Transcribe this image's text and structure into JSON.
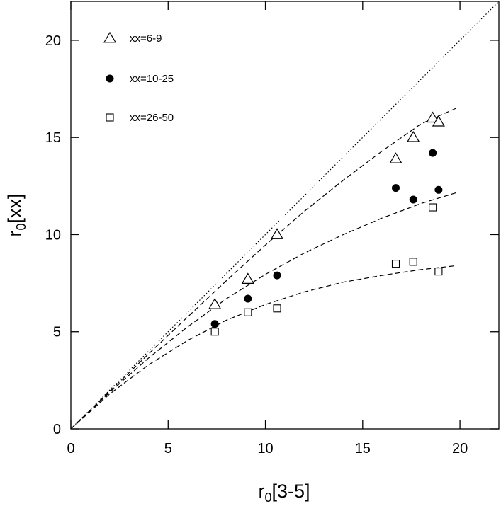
{
  "chart_data": {
    "type": "scatter",
    "title": "",
    "xlabel": "r0[3-5]",
    "xlabel_parts": {
      "main": "r",
      "sub": "0",
      "rest": "[3-5]"
    },
    "ylabel": "r0[xx]",
    "ylabel_parts": {
      "main": "r",
      "sub": "0",
      "rest": "[xx]"
    },
    "xlim": [
      0,
      22
    ],
    "ylim": [
      0,
      22
    ],
    "xticks": [
      0,
      5,
      10,
      15,
      20
    ],
    "yticks": [
      0,
      5,
      10,
      15,
      20
    ],
    "xtick_labels": [
      "0",
      "5",
      "10",
      "15",
      "20"
    ],
    "ytick_labels": [
      "0",
      "5",
      "10",
      "15",
      "20"
    ],
    "grid": false,
    "legend_position": "top-left",
    "series": [
      {
        "name": "xx=6-9",
        "marker": "open-triangle",
        "x": [
          7.4,
          9.1,
          10.6,
          16.7,
          17.6,
          18.6,
          18.9
        ],
        "y": [
          6.4,
          7.7,
          10.0,
          13.9,
          15.0,
          16.0,
          15.8
        ]
      },
      {
        "name": "xx=10-25",
        "marker": "filled-circle",
        "x": [
          7.4,
          9.1,
          10.6,
          16.7,
          17.6,
          18.6,
          18.9
        ],
        "y": [
          5.4,
          6.7,
          7.9,
          12.4,
          11.8,
          14.2,
          12.3
        ]
      },
      {
        "name": "xx=26-50",
        "marker": "open-square",
        "x": [
          7.4,
          9.1,
          10.6,
          16.7,
          17.6,
          18.6,
          18.9
        ],
        "y": [
          5.0,
          6.0,
          6.2,
          8.5,
          8.6,
          11.4,
          8.1
        ]
      }
    ],
    "reference_lines": [
      {
        "style": "dotted",
        "x": [
          0,
          22
        ],
        "y": [
          0,
          22
        ]
      },
      {
        "style": "dashed",
        "x": [
          0,
          2,
          4,
          6,
          8,
          10,
          12,
          14,
          16,
          18,
          19.8
        ],
        "y": [
          0,
          1.94,
          3.86,
          5.76,
          7.63,
          9.46,
          11.2,
          12.8,
          14.3,
          15.7,
          16.5
        ]
      },
      {
        "style": "dashed",
        "x": [
          0,
          2,
          4,
          6,
          8,
          10,
          12,
          14,
          16,
          18,
          19.8
        ],
        "y": [
          0,
          1.89,
          3.65,
          5.25,
          6.7,
          7.95,
          9.05,
          10.0,
          10.85,
          11.6,
          12.15
        ]
      },
      {
        "style": "dashed",
        "x": [
          0,
          2,
          4,
          6,
          8,
          10,
          12,
          14,
          16,
          18,
          19.8
        ],
        "y": [
          0,
          1.8,
          3.3,
          4.55,
          5.6,
          6.4,
          7.05,
          7.55,
          7.9,
          8.2,
          8.4
        ]
      }
    ]
  }
}
